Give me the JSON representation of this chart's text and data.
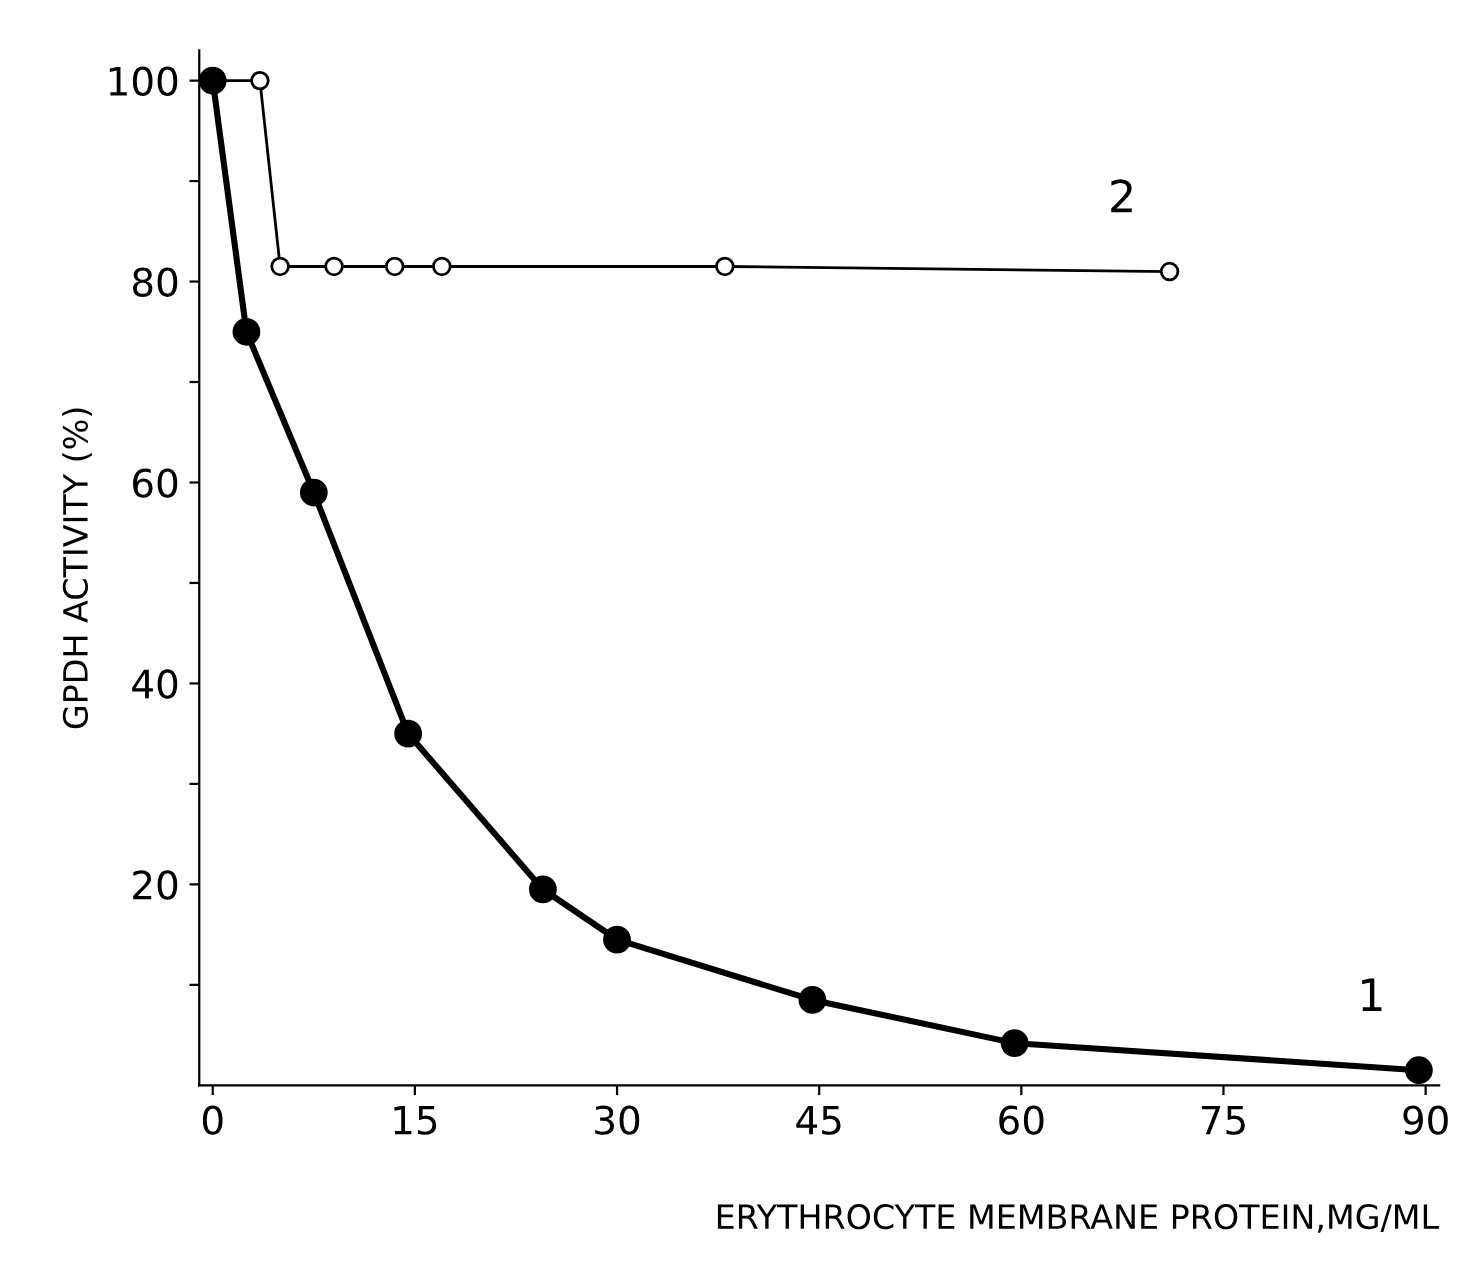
{
  "chart_data": {
    "type": "line",
    "xlabel": "ERYTHROCYTE MEMBRANE PROTEIN,MG/ML",
    "ylabel": "GPDH ACTIVITY (%)",
    "xlim": [
      -1,
      91
    ],
    "ylim": [
      0,
      103
    ],
    "xticks": [
      0,
      15,
      30,
      45,
      60,
      75,
      90
    ],
    "yticks": [
      {
        "value": 10,
        "label": null
      },
      20,
      {
        "value": 30,
        "label": null
      },
      40,
      {
        "value": 50,
        "label": null
      },
      60,
      {
        "value": 70,
        "label": null
      },
      80,
      {
        "value": 90,
        "label": null
      },
      100
    ],
    "grid": false,
    "legend": false,
    "marker": "circle",
    "line_style": "solid",
    "series": [
      {
        "name": "1",
        "color": "#000000",
        "x": [
          0,
          2.5,
          7.5,
          14.5,
          24.5,
          30,
          44.5,
          59.5,
          89.5
        ],
        "values": [
          100,
          75,
          59,
          35,
          19.5,
          14.5,
          8.5,
          4.2,
          1.5
        ]
      },
      {
        "name": "2",
        "color": "#000000",
        "x": [
          0,
          3.5,
          5,
          9,
          13.5,
          17,
          38,
          71
        ],
        "values": [
          100,
          100,
          81.5,
          81.5,
          81.5,
          81.5,
          81.5,
          81
        ]
      }
    ]
  }
}
